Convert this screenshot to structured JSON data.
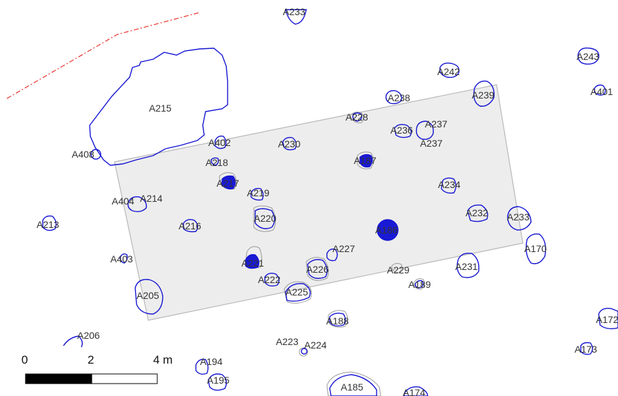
{
  "map": {
    "colors": {
      "feature_outline": "#1414d2",
      "feature_fill": "#1a1ad6",
      "trench_fill": "#ededed",
      "trench_outline": "#b8b8b8",
      "boundary_line": "#e8302c",
      "previous_outline": "#9a9a9a"
    },
    "trench": {
      "color": "#ededed"
    },
    "features": [
      {
        "id": "A233t",
        "label": "A233"
      },
      {
        "id": "A243",
        "label": "A243"
      },
      {
        "id": "A242",
        "label": "A242"
      },
      {
        "id": "A401",
        "label": "A401"
      },
      {
        "id": "A215",
        "label": "A215"
      },
      {
        "id": "A408",
        "label": "A408"
      },
      {
        "id": "A238",
        "label": "A238"
      },
      {
        "id": "A239",
        "label": "A239"
      },
      {
        "id": "A228",
        "label": "A228"
      },
      {
        "id": "A236",
        "label": "A236"
      },
      {
        "id": "A237a",
        "label": "A237"
      },
      {
        "id": "A237b",
        "label": "A237"
      },
      {
        "id": "A402",
        "label": "A402"
      },
      {
        "id": "A230",
        "label": "A230"
      },
      {
        "id": "A218",
        "label": "A218"
      },
      {
        "id": "A187",
        "label": "A187"
      },
      {
        "id": "A217",
        "label": "A217"
      },
      {
        "id": "A219",
        "label": "A219"
      },
      {
        "id": "A234",
        "label": "A234"
      },
      {
        "id": "A404",
        "label": "A404"
      },
      {
        "id": "A214",
        "label": "A214"
      },
      {
        "id": "A213",
        "label": "A213"
      },
      {
        "id": "A216",
        "label": "A216"
      },
      {
        "id": "A220",
        "label": "A220"
      },
      {
        "id": "A232",
        "label": "A232"
      },
      {
        "id": "A233",
        "label": "A233"
      },
      {
        "id": "A186",
        "label": "A186"
      },
      {
        "id": "A170",
        "label": "A170"
      },
      {
        "id": "A227",
        "label": "A227"
      },
      {
        "id": "A403",
        "label": "A403"
      },
      {
        "id": "A221",
        "label": "A221"
      },
      {
        "id": "A226",
        "label": "A226"
      },
      {
        "id": "A229",
        "label": "A229"
      },
      {
        "id": "A231",
        "label": "A231"
      },
      {
        "id": "A222",
        "label": "A222"
      },
      {
        "id": "A189",
        "label": "A189"
      },
      {
        "id": "A225",
        "label": "A225"
      },
      {
        "id": "A205",
        "label": "A205"
      },
      {
        "id": "A188",
        "label": "A188"
      },
      {
        "id": "A172",
        "label": "A172"
      },
      {
        "id": "A206",
        "label": "A206"
      },
      {
        "id": "A223",
        "label": "A223"
      },
      {
        "id": "A224",
        "label": "A224"
      },
      {
        "id": "A173",
        "label": "A173"
      },
      {
        "id": "A194",
        "label": "A194"
      },
      {
        "id": "A195",
        "label": "A195"
      },
      {
        "id": "A185",
        "label": "A185"
      },
      {
        "id": "A174",
        "label": "A174"
      }
    ],
    "scale_bar": {
      "labels": [
        "0",
        "2",
        "4 m"
      ],
      "segment_colors": [
        "#000000",
        "#ffffff"
      ]
    }
  }
}
